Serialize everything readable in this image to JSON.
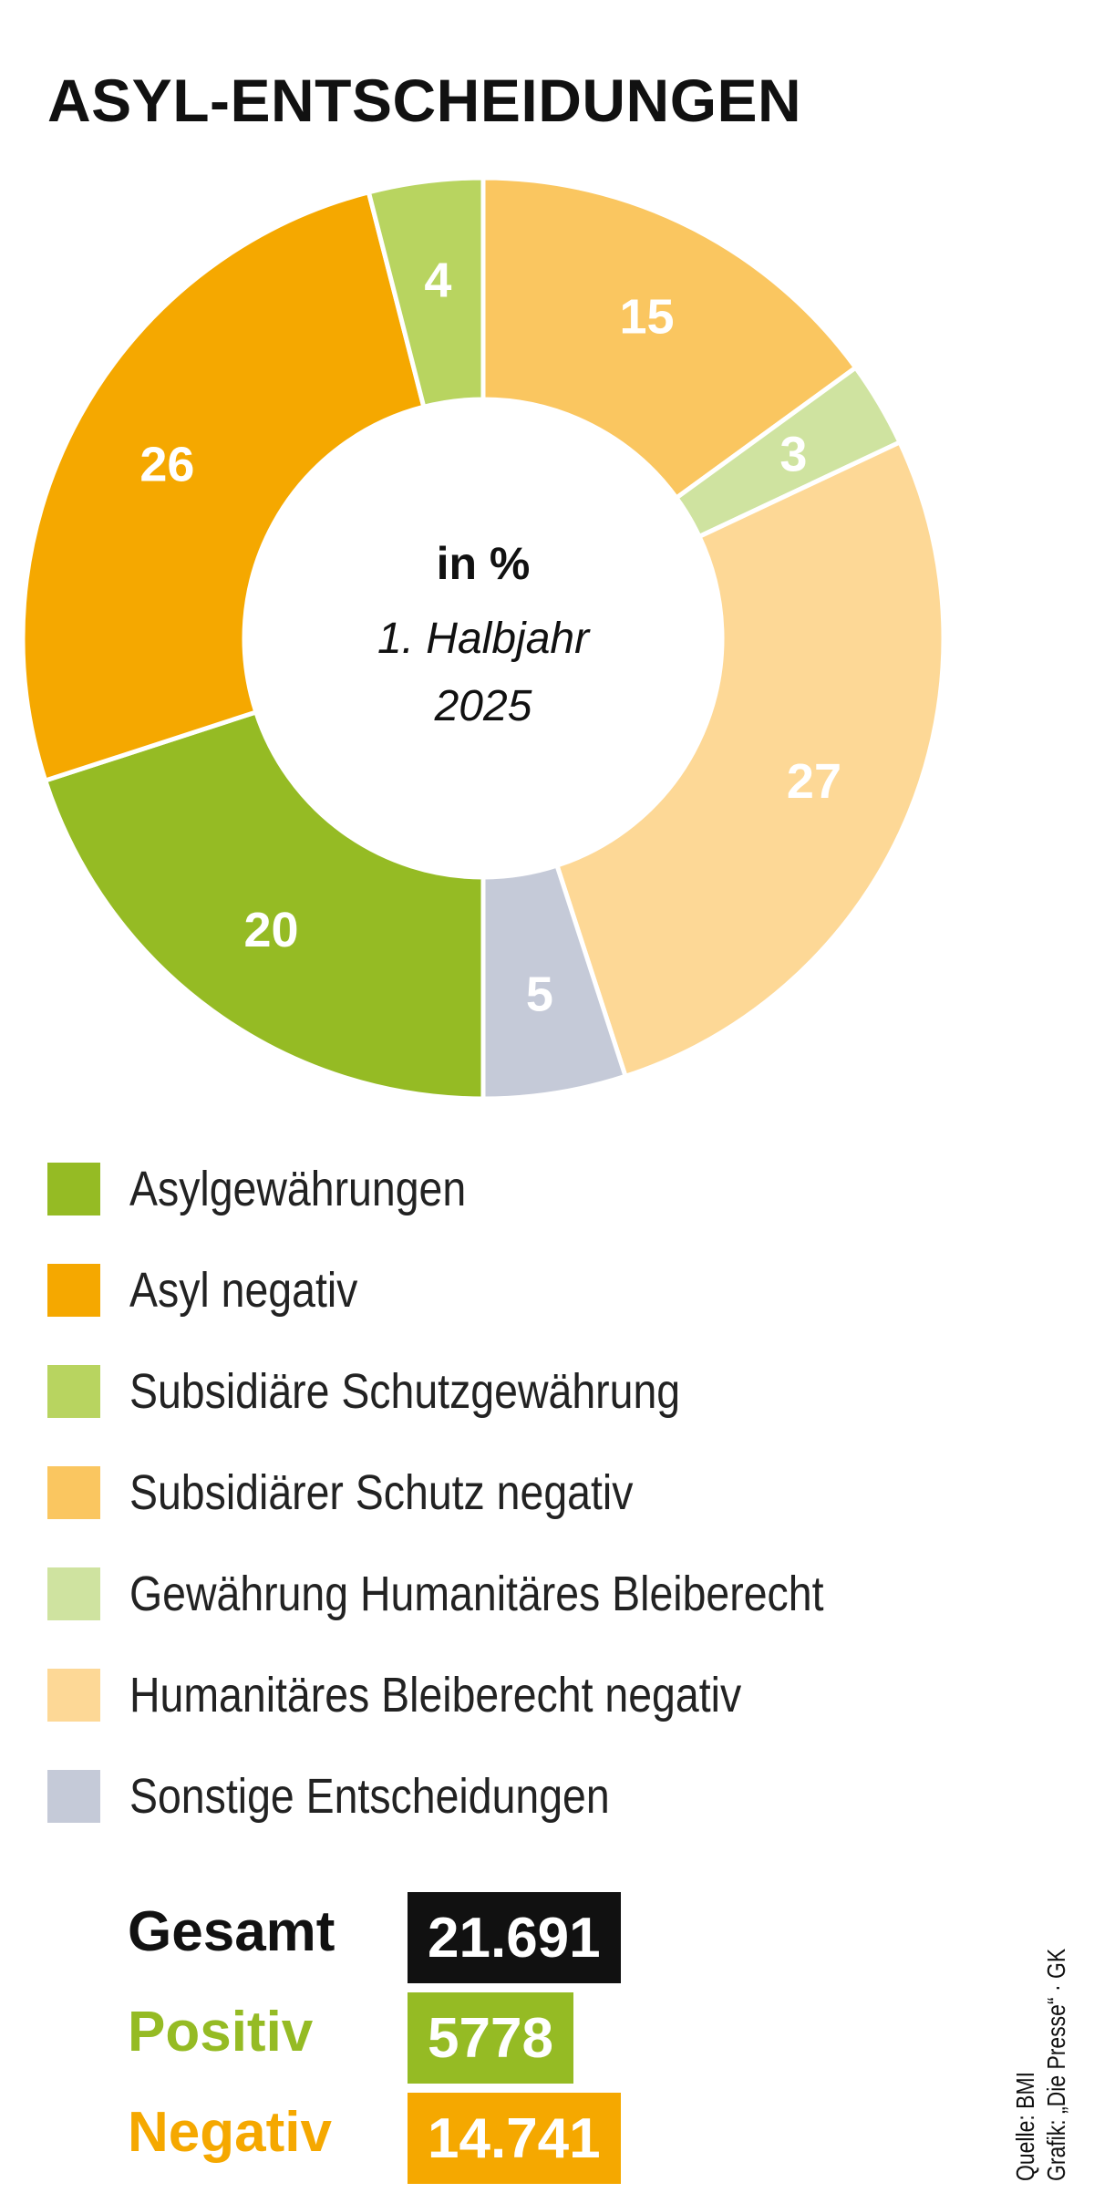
{
  "title": "ASYL-ENTSCHEIDUNGEN",
  "center": {
    "unit": "in %",
    "period_line1": "1. Halbjahr",
    "period_line2": "2025"
  },
  "chart_data": {
    "type": "pie",
    "title": "ASYL-ENTSCHEIDUNGEN",
    "subtitle": "in % · 1. Halbjahr 2025",
    "start_angle_deg": 0,
    "direction": "clockwise",
    "slices": [
      {
        "label": "Subsidiärer Schutz negativ",
        "value": 15,
        "color": "#fac660"
      },
      {
        "label": "Gewährung Humanitäres Bleiberecht",
        "value": 3,
        "color": "#cfe3a0"
      },
      {
        "label": "Humanitäres Bleiberecht negativ",
        "value": 27,
        "color": "#fdd896"
      },
      {
        "label": "Sonstige Entscheidungen",
        "value": 5,
        "color": "#c5cad8"
      },
      {
        "label": "Asylgewährungen",
        "value": 20,
        "color": "#95bb24"
      },
      {
        "label": "Asyl negativ",
        "value": 26,
        "color": "#f5a800"
      },
      {
        "label": "Subsidiäre Schutzgewährung",
        "value": 4,
        "color": "#b8d460"
      }
    ]
  },
  "legend": [
    {
      "label": "Asylgewährungen",
      "color": "#95bb24"
    },
    {
      "label": "Asyl negativ",
      "color": "#f5a800"
    },
    {
      "label": "Subsidiäre Schutzgewährung",
      "color": "#b8d460"
    },
    {
      "label": "Subsidiärer Schutz negativ",
      "color": "#fac660"
    },
    {
      "label": "Gewährung Humanitäres Bleiberecht",
      "color": "#cfe3a0"
    },
    {
      "label": "Humanitäres Bleiberecht negativ",
      "color": "#fdd896"
    },
    {
      "label": "Sonstige Entscheidungen",
      "color": "#c5cad8"
    }
  ],
  "totals": [
    {
      "label": "Gesamt",
      "value": "21.691",
      "label_color": "#111111",
      "box_color": "#111111"
    },
    {
      "label": "Positiv",
      "value": "5778",
      "label_color": "#95bb24",
      "box_color": "#95bb24"
    },
    {
      "label": "Negativ",
      "value": "14.741",
      "label_color": "#f5a800",
      "box_color": "#f5a800"
    }
  ],
  "source": {
    "line1": "Quelle: BMI",
    "line2": "Grafik: „Die Presse“ · GK"
  }
}
